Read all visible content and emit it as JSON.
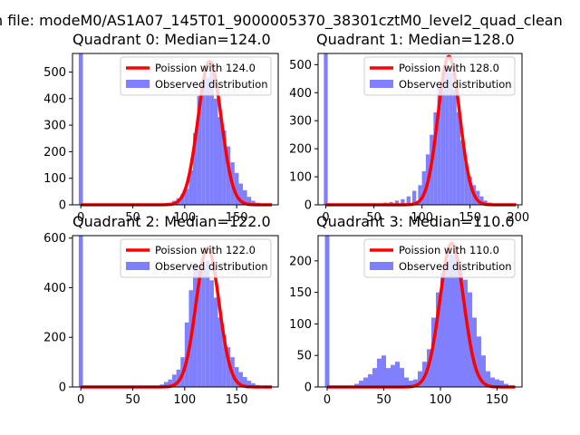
{
  "suptitle": "n file: modeM0/AS1A07_145T01_9000005370_38301cztM0_level2_quad_clean",
  "colors": {
    "hist": "#8080ff",
    "fit": "#ff0000",
    "fit_light": "#ffb0b0"
  },
  "chart_data": [
    {
      "type": "bar",
      "title": "Quadrant 0: Median=124.0",
      "median": 124.0,
      "xlim": [
        -8,
        190
      ],
      "ylim": [
        0,
        570
      ],
      "xticks": [
        0,
        50,
        100,
        150
      ],
      "yticks": [
        0,
        100,
        200,
        300,
        400,
        500
      ],
      "legend": [
        "Poission with 124.0",
        "Observed distribution"
      ],
      "hist_x": [
        0,
        74,
        78,
        82,
        86,
        90,
        94,
        98,
        102,
        106,
        110,
        114,
        118,
        122,
        126,
        130,
        134,
        138,
        142,
        146,
        150,
        154,
        158,
        162,
        166,
        170,
        174,
        178,
        182
      ],
      "hist_y": [
        570,
        2,
        3,
        5,
        8,
        15,
        25,
        40,
        60,
        130,
        270,
        410,
        465,
        480,
        500,
        400,
        330,
        280,
        220,
        160,
        120,
        80,
        55,
        30,
        15,
        8,
        5,
        3,
        1
      ],
      "fit_peak": 540
    },
    {
      "type": "bar",
      "title": "Quadrant 1: Median=128.0",
      "median": 128.0,
      "xlim": [
        -8,
        204
      ],
      "ylim": [
        0,
        540
      ],
      "xticks": [
        0,
        50,
        100,
        150,
        200
      ],
      "yticks": [
        0,
        100,
        200,
        300,
        400,
        500
      ],
      "legend": [
        "Poission with 128.0",
        "Observed distribution"
      ],
      "hist_x": [
        0,
        50,
        56,
        62,
        68,
        74,
        80,
        86,
        92,
        98,
        102,
        106,
        110,
        114,
        118,
        122,
        126,
        130,
        134,
        138,
        142,
        146,
        150,
        154,
        158,
        162,
        166,
        170,
        174,
        178
      ],
      "hist_y": [
        540,
        2,
        5,
        8,
        10,
        15,
        20,
        30,
        50,
        70,
        120,
        180,
        250,
        330,
        420,
        470,
        500,
        470,
        410,
        330,
        230,
        150,
        100,
        70,
        50,
        30,
        15,
        8,
        3,
        1
      ],
      "fit_peak": 530
    },
    {
      "type": "bar",
      "title": "Quadrant 2: Median=122.0",
      "median": 122.0,
      "xlim": [
        -8,
        190
      ],
      "ylim": [
        0,
        610
      ],
      "xticks": [
        0,
        50,
        100,
        150
      ],
      "yticks": [
        0,
        200,
        400,
        600
      ],
      "legend": [
        "Poission with 122.0",
        "Observed distribution"
      ],
      "hist_x": [
        0,
        70,
        74,
        78,
        82,
        86,
        90,
        94,
        98,
        102,
        106,
        110,
        114,
        118,
        122,
        126,
        130,
        134,
        138,
        142,
        146,
        150,
        154,
        158,
        162,
        166,
        170,
        174,
        178
      ],
      "hist_y": [
        610,
        3,
        5,
        10,
        20,
        30,
        50,
        70,
        120,
        260,
        390,
        500,
        470,
        480,
        510,
        430,
        360,
        280,
        210,
        160,
        120,
        80,
        60,
        40,
        25,
        15,
        8,
        4,
        2
      ],
      "fit_peak": 560
    },
    {
      "type": "bar",
      "title": "Quadrant 3: Median=110.0",
      "median": 110.0,
      "xlim": [
        -8,
        172
      ],
      "ylim": [
        0,
        240
      ],
      "xticks": [
        0,
        50,
        100,
        150
      ],
      "yticks": [
        0,
        50,
        100,
        150,
        200
      ],
      "legend": [
        "Poission with 110.0",
        "Observed distribution"
      ],
      "hist_x": [
        0,
        26,
        30,
        34,
        38,
        42,
        46,
        50,
        54,
        58,
        62,
        66,
        70,
        74,
        78,
        82,
        86,
        90,
        94,
        98,
        102,
        106,
        110,
        114,
        118,
        122,
        126,
        130,
        134,
        138,
        142,
        146,
        150,
        154,
        158
      ],
      "hist_y": [
        240,
        5,
        10,
        15,
        20,
        30,
        45,
        50,
        30,
        35,
        40,
        30,
        15,
        10,
        12,
        25,
        40,
        60,
        110,
        150,
        180,
        200,
        210,
        215,
        190,
        170,
        150,
        110,
        80,
        50,
        25,
        15,
        12,
        10,
        5
      ],
      "fit_peak": 228
    }
  ]
}
